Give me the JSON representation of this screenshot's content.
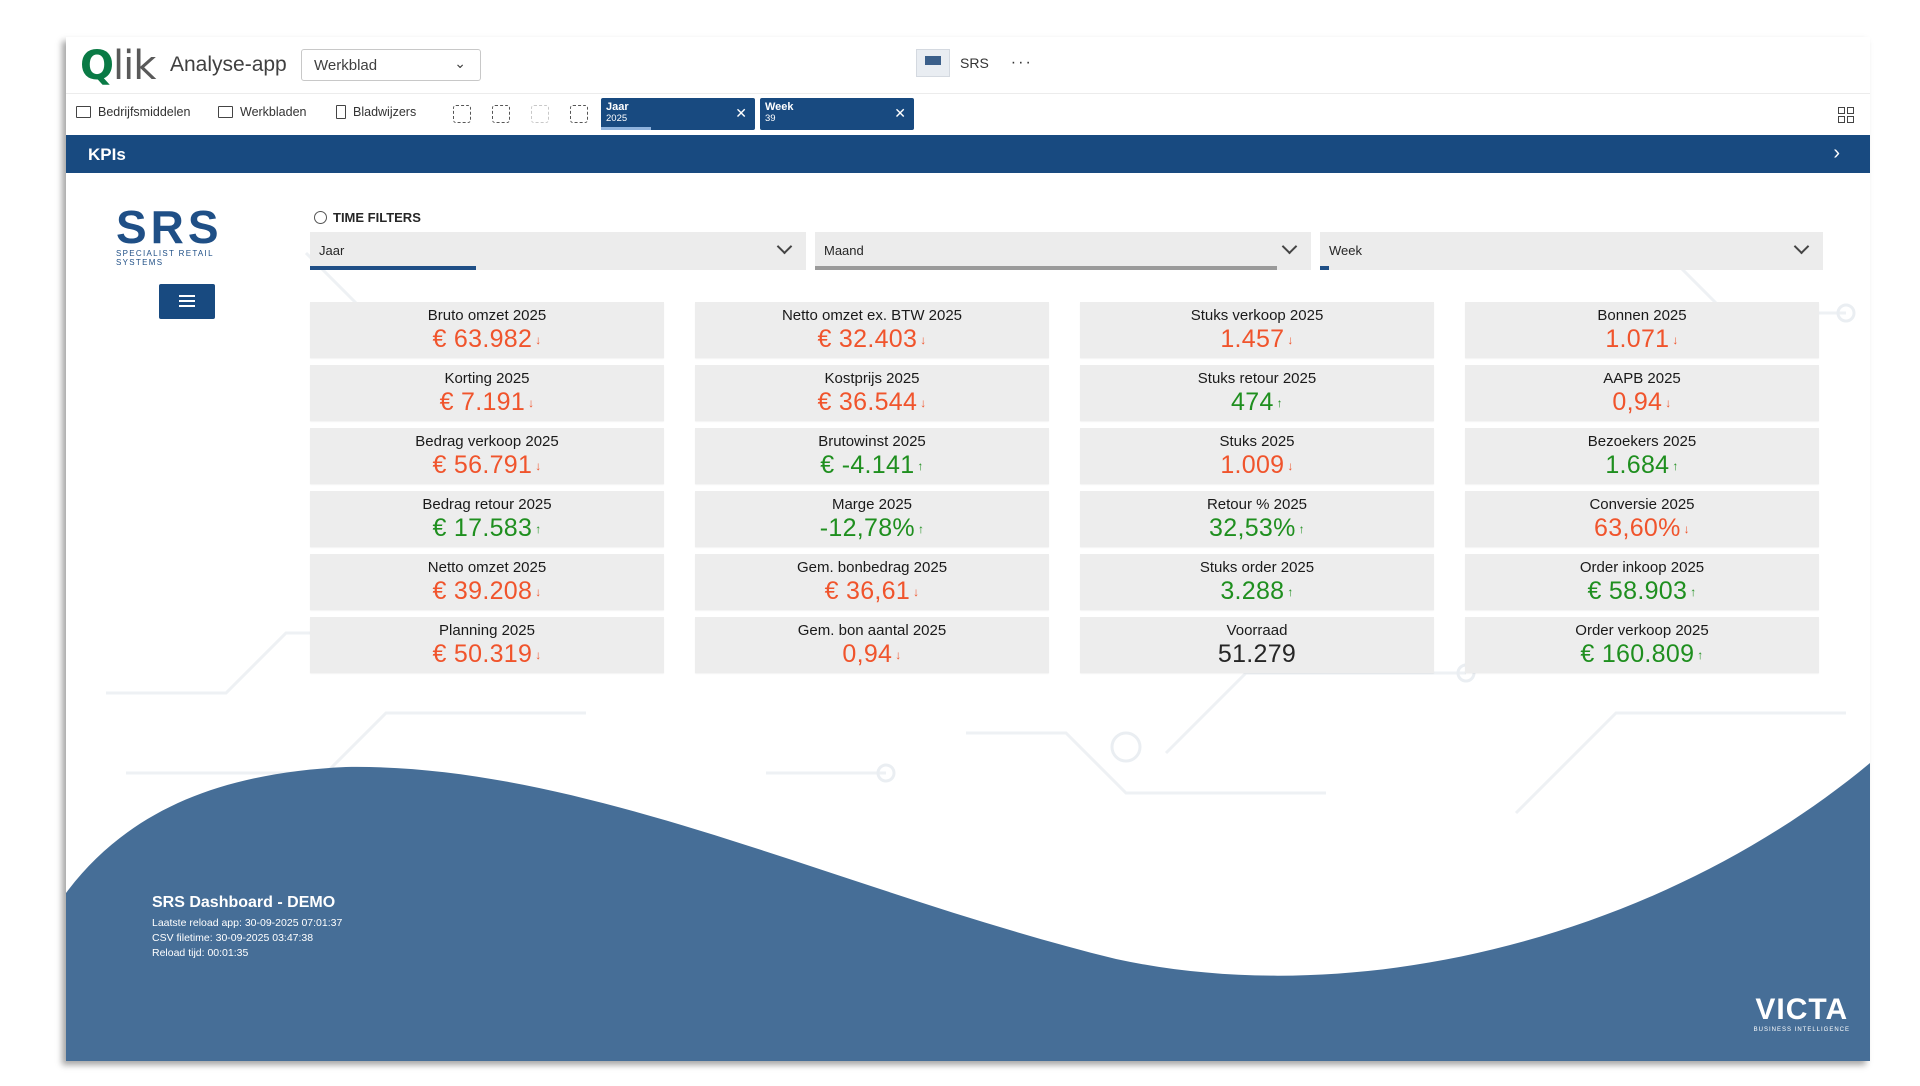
{
  "app": {
    "name": "Analyse-app",
    "sheet_select": "Werkblad",
    "current_app": "SRS",
    "more": "···"
  },
  "toolbar": {
    "assets": "Bedrijfsmiddelen",
    "sheets": "Werkbladen",
    "bookmarks": "Bladwijzers"
  },
  "selections": [
    {
      "field": "Jaar",
      "value": "2025"
    },
    {
      "field": "Week",
      "value": "39"
    }
  ],
  "header": {
    "title": "KPIs"
  },
  "logo": {
    "brand": "SRS",
    "tagline": "SPECIALIST RETAIL SYSTEMS"
  },
  "time_filters": {
    "title": "TIME FILTERS",
    "filters": [
      "Jaar",
      "Maand",
      "Week"
    ]
  },
  "kpis": [
    {
      "label": "Bruto omzet 2025",
      "value": "€ 63.982",
      "status": "red",
      "trend": "↓"
    },
    {
      "label": "Netto omzet ex. BTW 2025",
      "value": "€ 32.403",
      "status": "red",
      "trend": "↓"
    },
    {
      "label": "Stuks verkoop 2025",
      "value": "1.457",
      "status": "red",
      "trend": "↓"
    },
    {
      "label": "Bonnen 2025",
      "value": "1.071",
      "status": "red",
      "trend": "↓"
    },
    {
      "label": "Korting 2025",
      "value": "€ 7.191",
      "status": "red",
      "trend": "↓"
    },
    {
      "label": "Kostprijs 2025",
      "value": "€ 36.544",
      "status": "red",
      "trend": "↓"
    },
    {
      "label": "Stuks retour 2025",
      "value": "474",
      "status": "green",
      "trend": "↑"
    },
    {
      "label": "AAPB 2025",
      "value": "0,94",
      "status": "red",
      "trend": "↓"
    },
    {
      "label": "Bedrag verkoop 2025",
      "value": "€ 56.791",
      "status": "red",
      "trend": "↓"
    },
    {
      "label": "Brutowinst 2025",
      "value": "€ -4.141",
      "status": "green",
      "trend": "↑"
    },
    {
      "label": "Stuks 2025",
      "value": "1.009",
      "status": "red",
      "trend": "↓"
    },
    {
      "label": "Bezoekers 2025",
      "value": "1.684",
      "status": "green",
      "trend": "↑"
    },
    {
      "label": "Bedrag retour 2025",
      "value": "€ 17.583",
      "status": "green",
      "trend": "↑"
    },
    {
      "label": "Marge 2025",
      "value": "-12,78%",
      "status": "green",
      "trend": "↑"
    },
    {
      "label": "Retour % 2025",
      "value": "32,53%",
      "status": "green",
      "trend": "↑"
    },
    {
      "label": "Conversie 2025",
      "value": "63,60%",
      "status": "red",
      "trend": "↓"
    },
    {
      "label": "Netto omzet 2025",
      "value": "€ 39.208",
      "status": "red",
      "trend": "↓"
    },
    {
      "label": "Gem. bonbedrag 2025",
      "value": "€ 36,61",
      "status": "red",
      "trend": "↓"
    },
    {
      "label": "Stuks order 2025",
      "value": "3.288",
      "status": "green",
      "trend": "↑"
    },
    {
      "label": "Order inkoop 2025",
      "value": "€ 58.903",
      "status": "green",
      "trend": "↑"
    },
    {
      "label": "Planning 2025",
      "value": "€ 50.319",
      "status": "red",
      "trend": "↓"
    },
    {
      "label": "Gem. bon aantal 2025",
      "value": "0,94",
      "status": "red",
      "trend": "↓"
    },
    {
      "label": "Voorraad",
      "value": "51.279",
      "status": "black",
      "trend": ""
    },
    {
      "label": "Order verkoop 2025",
      "value": "€ 160.809",
      "status": "green",
      "trend": "↑"
    }
  ],
  "footer": {
    "title": "SRS Dashboard - DEMO",
    "lines": [
      "Laatste reload app: 30-09-2025 07:01:37",
      "CSV filetime: 30-09-2025 03:47:38",
      "Reload tijd: 00:01:35"
    ],
    "brand": "VICTA",
    "brand_sub": "BUSINESS INTELLIGENCE"
  },
  "colors": {
    "primary": "#184a80",
    "wave": "#466e97",
    "negative": "#f0542c",
    "positive": "#1f8f1f"
  }
}
